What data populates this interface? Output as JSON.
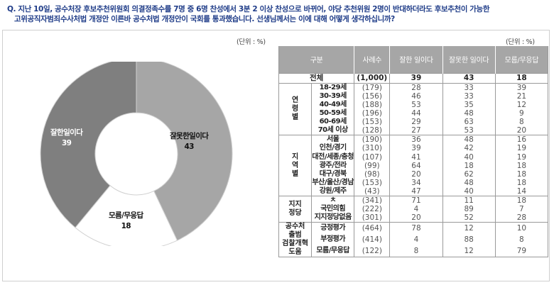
{
  "question": {
    "line1": "Q. 지난 10일, 공수처장 후보추천위원회 의결정족수를 7명 중 6명 찬성에서 3분 2 이상 찬성으로 바뀌어, 야당 추천위원 2명이 반대하더라도 후보추천이 가능한",
    "line2": "고위공직자범죄수사처법 개정안 이른바 공수처법 개정안이 국회를 통과했습니다. 선생님께서는 이에 대해 어떻게 생각하십니까?"
  },
  "unit_label_left": "(단위 : %)",
  "unit_label_right": "(단위 : %)",
  "chart_data": [
    {
      "type": "pie",
      "subtype": "donut",
      "title": "",
      "categories": [
        "잘한일이다",
        "잘못한일이다",
        "모름/무응답"
      ],
      "values": [
        39,
        43,
        18
      ],
      "colors": [
        "#7f7f7f",
        "#a6a6a6",
        "#ffffff"
      ],
      "unit": "%",
      "start_angle_deg": 0,
      "direction": "clockwise-from-top: 잘못한일이다, 모름/무응답, 잘한일이다"
    },
    {
      "type": "table",
      "columns": [
        "구분",
        "사례수",
        "잘한 일이다",
        "잘못한 일이다",
        "모름/무응답"
      ],
      "total": {
        "label": "전체",
        "n": "(1,000)",
        "values": [
          39,
          43,
          18
        ]
      },
      "groups": [
        {
          "group": "연령별",
          "rows": [
            {
              "label": "18-29세",
              "n": "(179)",
              "values": [
                28,
                33,
                39
              ]
            },
            {
              "label": "30-39세",
              "n": "(156)",
              "values": [
                46,
                33,
                21
              ]
            },
            {
              "label": "40-49세",
              "n": "(188)",
              "values": [
                53,
                35,
                12
              ]
            },
            {
              "label": "50-59세",
              "n": "(196)",
              "values": [
                44,
                48,
                9
              ]
            },
            {
              "label": "60-69세",
              "n": "(153)",
              "values": [
                29,
                63,
                8
              ]
            },
            {
              "label": "70세 이상",
              "n": "(128)",
              "values": [
                27,
                53,
                20
              ]
            }
          ]
        },
        {
          "group": "지역별",
          "rows": [
            {
              "label": "서울",
              "n": "(190)",
              "values": [
                36,
                48,
                16
              ]
            },
            {
              "label": "인천/경기",
              "n": "(310)",
              "values": [
                39,
                42,
                19
              ]
            },
            {
              "label": "대전/세종/충청",
              "n": "(107)",
              "values": [
                41,
                40,
                19
              ]
            },
            {
              "label": "광주/전라",
              "n": "(99)",
              "values": [
                64,
                18,
                18
              ]
            },
            {
              "label": "대구/경북",
              "n": "(98)",
              "values": [
                20,
                62,
                18
              ]
            },
            {
              "label": "부산/울산/경남",
              "n": "(153)",
              "values": [
                34,
                48,
                18
              ]
            },
            {
              "label": "강원/제주",
              "n": "(43)",
              "values": [
                47,
                40,
                14
              ]
            }
          ]
        },
        {
          "group": "지지정당",
          "rows": [
            {
              "label": "ㅊ",
              "n": "(341)",
              "values": [
                71,
                11,
                18
              ]
            },
            {
              "label": "국민의힘",
              "n": "(222)",
              "values": [
                4,
                89,
                7
              ]
            },
            {
              "label": "지지정당없음",
              "n": "(301)",
              "values": [
                20,
                52,
                28
              ]
            }
          ]
        },
        {
          "group": "공수처 출범 검찰개혁 도움",
          "rows": [
            {
              "label": "긍정평가",
              "n": "(464)",
              "values": [
                78,
                12,
                10
              ]
            },
            {
              "label": "부정평가",
              "n": "(414)",
              "values": [
                4,
                88,
                8
              ]
            },
            {
              "label": "모름/무응답",
              "n": "(122)",
              "values": [
                8,
                12,
                79
              ]
            }
          ]
        }
      ]
    }
  ],
  "pie_labels": {
    "good": {
      "name": "잘한일이다",
      "value": "39"
    },
    "bad": {
      "name": "잘못한일이다",
      "value": "43"
    },
    "unknown": {
      "name": "모름/무응답",
      "value": "18"
    }
  },
  "table": {
    "headers": [
      "구분",
      "사례수",
      "잘한 일이다",
      "잘못한 일이다",
      "모름/무응답"
    ],
    "total": {
      "label": "전체",
      "n": "(1,000)",
      "v": [
        "39",
        "43",
        "18"
      ]
    },
    "groups": [
      {
        "name_lines": [
          "연",
          "령",
          "별"
        ],
        "rows": [
          {
            "label": "18-29세",
            "n": "(179)",
            "v": [
              "28",
              "33",
              "39"
            ]
          },
          {
            "label": "30-39세",
            "n": "(156)",
            "v": [
              "46",
              "33",
              "21"
            ]
          },
          {
            "label": "40-49세",
            "n": "(188)",
            "v": [
              "53",
              "35",
              "12"
            ]
          },
          {
            "label": "50-59세",
            "n": "(196)",
            "v": [
              "44",
              "48",
              "9"
            ]
          },
          {
            "label": "60-69세",
            "n": "(153)",
            "v": [
              "29",
              "63",
              "8"
            ]
          },
          {
            "label": "70세 이상",
            "n": "(128)",
            "v": [
              "27",
              "53",
              "20"
            ]
          }
        ]
      },
      {
        "name_lines": [
          "지",
          "역",
          "별"
        ],
        "rows": [
          {
            "label": "서울",
            "n": "(190)",
            "v": [
              "36",
              "48",
              "16"
            ]
          },
          {
            "label": "인천/경기",
            "n": "(310)",
            "v": [
              "39",
              "42",
              "19"
            ]
          },
          {
            "label": "대전/세종/충청",
            "n": "(107)",
            "v": [
              "41",
              "40",
              "19"
            ]
          },
          {
            "label": "광주/전라",
            "n": "(99)",
            "v": [
              "64",
              "18",
              "18"
            ]
          },
          {
            "label": "대구/경북",
            "n": "(98)",
            "v": [
              "20",
              "62",
              "18"
            ]
          },
          {
            "label": "부산/울산/경남",
            "n": "(153)",
            "v": [
              "34",
              "48",
              "18"
            ]
          },
          {
            "label": "강원/제주",
            "n": "(43)",
            "v": [
              "47",
              "40",
              "14"
            ]
          }
        ]
      },
      {
        "name_lines": [
          "지지",
          "정당"
        ],
        "rows": [
          {
            "label": "ㅊ",
            "n": "(341)",
            "v": [
              "71",
              "11",
              "18"
            ]
          },
          {
            "label": "국민의힘",
            "n": "(222)",
            "v": [
              "4",
              "89",
              "7"
            ]
          },
          {
            "label": "지지정당없음",
            "n": "(301)",
            "v": [
              "20",
              "52",
              "28"
            ]
          }
        ]
      },
      {
        "name_lines": [
          "공수처",
          "출범",
          "검찰개혁",
          "도움"
        ],
        "rows": [
          {
            "label": "긍정평가",
            "n": "(464)",
            "v": [
              "78",
              "12",
              "10"
            ]
          },
          {
            "label": "부정평가",
            "n": "(414)",
            "v": [
              "4",
              "88",
              "8"
            ]
          },
          {
            "label": "모름/무응답",
            "n": "(122)",
            "v": [
              "8",
              "12",
              "79"
            ]
          }
        ]
      }
    ]
  },
  "colors": {
    "question_text": "#1f3c88",
    "header_bg": "#a6a6a6",
    "slice_good": "#7f7f7f",
    "slice_bad": "#a6a6a6",
    "slice_unknown": "#ffffff",
    "frame_border": "#cfcfcf"
  }
}
